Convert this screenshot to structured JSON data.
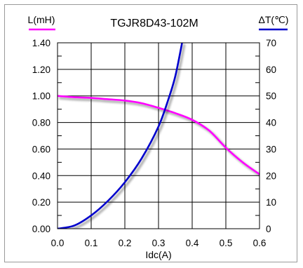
{
  "chart_data": {
    "type": "line",
    "title": "TGJR8D43-102M",
    "xlabel": "Idc(A)",
    "xlim": [
      0,
      0.6
    ],
    "x_ticks": [
      "0.0",
      "0.1",
      "0.2",
      "0.3",
      "0.4",
      "0.5",
      "0.6"
    ],
    "grid": true,
    "left_axis": {
      "label": "L(mH)",
      "ylim": [
        0,
        1.4
      ],
      "ticks": [
        "0.00",
        "0.20",
        "0.40",
        "0.60",
        "0.80",
        "1.00",
        "1.20",
        "1.40"
      ],
      "legend_color": "#ff00ff"
    },
    "right_axis": {
      "label": "ΔT(℃)",
      "ylim": [
        0,
        70
      ],
      "ticks": [
        "0",
        "10",
        "20",
        "30",
        "40",
        "50",
        "60",
        "70"
      ],
      "legend_color": "#0000cc"
    },
    "series": [
      {
        "axis": "left",
        "color": "#ff00ff",
        "x": [
          0,
          0.05,
          0.1,
          0.15,
          0.2,
          0.25,
          0.3,
          0.35,
          0.4,
          0.45,
          0.5,
          0.55,
          0.6
        ],
        "y": [
          1.0,
          0.99,
          0.985,
          0.975,
          0.965,
          0.945,
          0.91,
          0.87,
          0.82,
          0.74,
          0.61,
          0.5,
          0.41
        ]
      },
      {
        "axis": "right",
        "color": "#0000cc",
        "x": [
          0,
          0.05,
          0.1,
          0.15,
          0.2,
          0.25,
          0.3,
          0.33,
          0.35,
          0.37
        ],
        "y": [
          0,
          1.2,
          5,
          10.5,
          17.5,
          26.5,
          38.5,
          49,
          57.5,
          70
        ]
      }
    ]
  }
}
